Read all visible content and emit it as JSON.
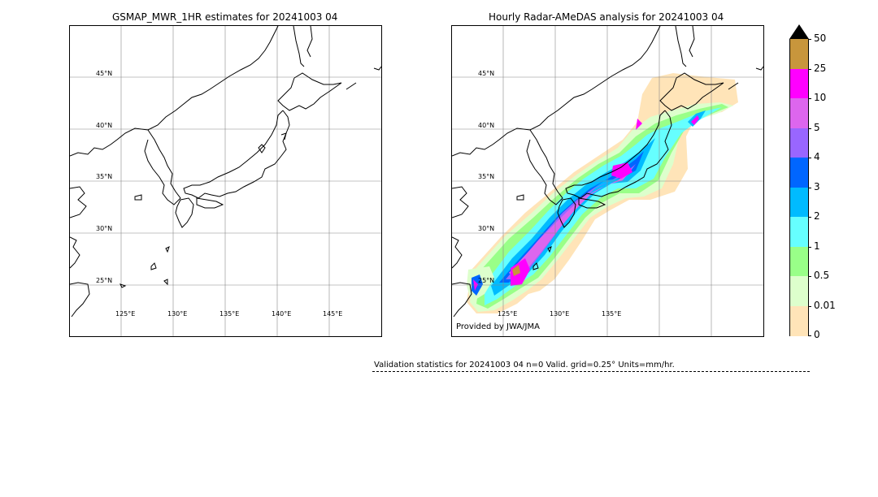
{
  "left_panel": {
    "title": "GSMAP_MWR_1HR estimates for 20241003 04",
    "lat_labels": [
      "45°N",
      "40°N",
      "35°N",
      "30°N",
      "25°N"
    ],
    "lon_labels": [
      "125°E",
      "130°E",
      "135°E",
      "140°E",
      "145°E"
    ]
  },
  "right_panel": {
    "title": "Hourly Radar-AMeDAS analysis for 20241003 04",
    "lat_labels": [
      "45°N",
      "40°N",
      "35°N",
      "30°N",
      "25°N"
    ],
    "lon_labels": [
      "125°E",
      "130°E",
      "135°E"
    ],
    "credit": "Provided by JWA/JMA"
  },
  "colorbar": {
    "labels": [
      "50",
      "25",
      "10",
      "5",
      "4",
      "3",
      "2",
      "1",
      "0.5",
      "0.01",
      "0"
    ],
    "colors": [
      "#c8963c",
      "#ff00ff",
      "#dd66ee",
      "#9966ff",
      "#0066ff",
      "#00bbff",
      "#66ffff",
      "#99ff88",
      "#ddffcc",
      "#ffe4b8"
    ],
    "over_color": "#000000"
  },
  "validation": {
    "text": "Validation statistics for 20241003 04  n=0 Valid. grid=0.25° Units=mm/hr."
  }
}
